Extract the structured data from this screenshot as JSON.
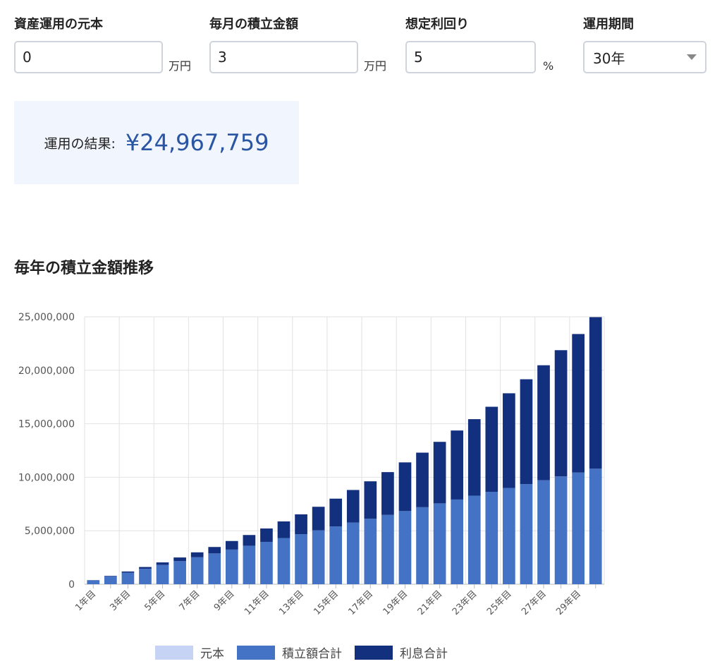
{
  "form": {
    "principal": {
      "label": "資産運用の元本",
      "value": "0",
      "unit": "万円"
    },
    "monthly": {
      "label": "毎月の積立金額",
      "value": "3",
      "unit": "万円"
    },
    "rate": {
      "label": "想定利回り",
      "value": "5",
      "unit": "%"
    },
    "period": {
      "label": "運用期間",
      "value": "30年"
    }
  },
  "result": {
    "label": "運用の結果:",
    "value": "¥24,967,759"
  },
  "section_title": "毎年の積立金額推移",
  "colors": {
    "principal": "#c6d3f5",
    "contrib": "#4472c4",
    "interest": "#13307f",
    "accent": "#2a55a3"
  },
  "chart_data": {
    "type": "bar",
    "stacked": true,
    "categories": [
      "1年目",
      "2年目",
      "3年目",
      "4年目",
      "5年目",
      "6年目",
      "7年目",
      "8年目",
      "9年目",
      "10年目",
      "11年目",
      "12年目",
      "13年目",
      "14年目",
      "15年目",
      "16年目",
      "17年目",
      "18年目",
      "19年目",
      "20年目",
      "21年目",
      "22年目",
      "23年目",
      "24年目",
      "25年目",
      "26年目",
      "27年目",
      "28年目",
      "29年目",
      "30年目"
    ],
    "x_tick_labels": [
      "1年目",
      "",
      "3年目",
      "",
      "5年目",
      "",
      "7年目",
      "",
      "9年目",
      "",
      "11年目",
      "",
      "13年目",
      "",
      "15年目",
      "",
      "17年目",
      "",
      "19年目",
      "",
      "21年目",
      "",
      "23年目",
      "",
      "25年目",
      "",
      "27年目",
      "",
      "29年目",
      ""
    ],
    "series": [
      {
        "name": "元本",
        "color": "#c6d3f5",
        "values": [
          0,
          0,
          0,
          0,
          0,
          0,
          0,
          0,
          0,
          0,
          0,
          0,
          0,
          0,
          0,
          0,
          0,
          0,
          0,
          0,
          0,
          0,
          0,
          0,
          0,
          0,
          0,
          0,
          0,
          0
        ]
      },
      {
        "name": "積立額合計",
        "color": "#4472c4",
        "values": [
          360000,
          720000,
          1080000,
          1440000,
          1800000,
          2160000,
          2520000,
          2880000,
          3240000,
          3600000,
          3960000,
          4320000,
          4680000,
          5040000,
          5400000,
          5760000,
          6120000,
          6480000,
          6840000,
          7200000,
          7560000,
          7920000,
          8280000,
          8640000,
          9000000,
          9360000,
          9720000,
          10080000,
          10440000,
          10800000
        ]
      },
      {
        "name": "利息合計",
        "color": "#13307f",
        "values": [
          18000,
          54900,
          110000,
          170000,
          240000,
          340000,
          460000,
          600000,
          800000,
          1000000,
          1250000,
          1550000,
          1850000,
          2200000,
          2600000,
          3050000,
          3500000,
          4000000,
          4550000,
          5100000,
          5750000,
          6450000,
          7150000,
          7950000,
          8850000,
          9800000,
          10750000,
          11800000,
          12950000,
          14167759
        ]
      }
    ],
    "y_ticks": [
      "0",
      "5,000,000",
      "10,000,000",
      "15,000,000",
      "20,000,000",
      "25,000,000"
    ],
    "ylim": [
      0,
      25000000
    ],
    "legend_position": "bottom"
  }
}
